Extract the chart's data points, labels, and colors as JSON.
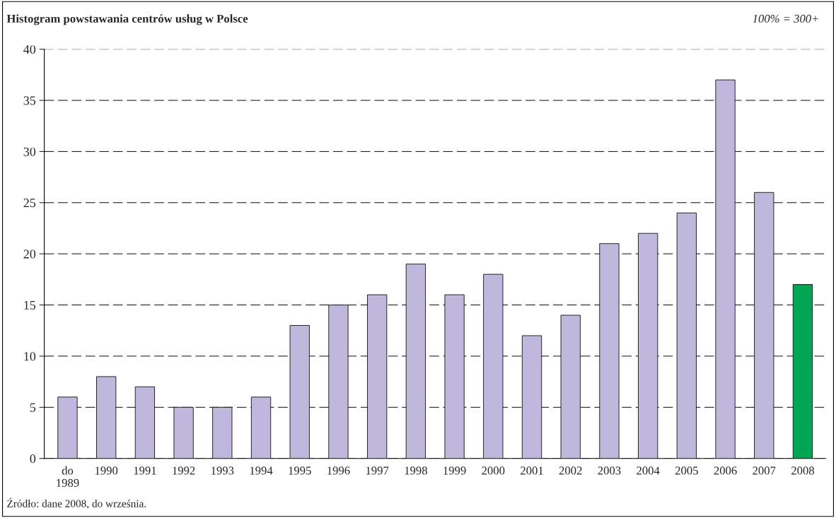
{
  "chart_data": {
    "type": "bar",
    "title": "Histogram powstawania centrów usług w Polsce",
    "annotations": [
      "100% = 300+",
      "Źródło: dane 2008, do września."
    ],
    "categories": [
      "do\n1989",
      "1990",
      "1991",
      "1992",
      "1993",
      "1994",
      "1995",
      "1996",
      "1997",
      "1998",
      "1999",
      "2000",
      "2001",
      "2002",
      "2003",
      "2004",
      "2005",
      "2006",
      "2007",
      "2008"
    ],
    "values": [
      6,
      8,
      7,
      5,
      5,
      6,
      13,
      15,
      16,
      19,
      16,
      18,
      12,
      14,
      21,
      22,
      24,
      37,
      26,
      17
    ],
    "colors": [
      "#c0b8dc",
      "#c0b8dc",
      "#c0b8dc",
      "#c0b8dc",
      "#c0b8dc",
      "#c0b8dc",
      "#c0b8dc",
      "#c0b8dc",
      "#c0b8dc",
      "#c0b8dc",
      "#c0b8dc",
      "#c0b8dc",
      "#c0b8dc",
      "#c0b8dc",
      "#c0b8dc",
      "#c0b8dc",
      "#c0b8dc",
      "#c0b8dc",
      "#c0b8dc",
      "#00a651"
    ],
    "ylim": [
      0,
      40
    ],
    "yticks": [
      0,
      5,
      10,
      15,
      20,
      25,
      30,
      35,
      40
    ],
    "grid": "y",
    "legend": false
  }
}
